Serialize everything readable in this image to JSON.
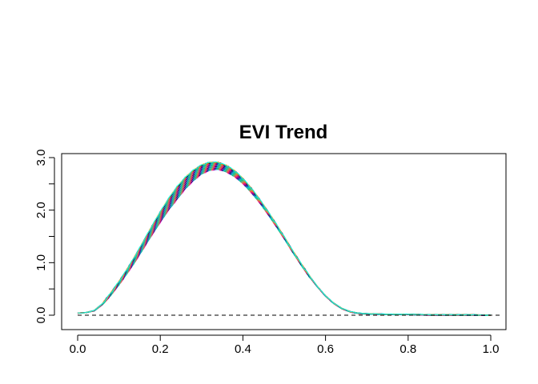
{
  "chart_data": {
    "type": "line",
    "title": "EVI Trend",
    "xlabel": "",
    "ylabel": "",
    "xlim": [
      0,
      1
    ],
    "ylim": [
      0,
      3
    ],
    "x_ticks": [
      "0.0",
      "0.2",
      "0.4",
      "0.6",
      "0.8",
      "1.0"
    ],
    "x_tick_values": [
      0.0,
      0.2,
      0.4,
      0.6,
      0.8,
      1.0
    ],
    "y_ticks": [
      "0.0",
      "1.0",
      "2.0",
      "3.0"
    ],
    "y_tick_values": [
      0.0,
      1.0,
      2.0,
      3.0
    ],
    "y_minor_tick_values": [
      0.5,
      1.5,
      2.5
    ],
    "grid": false,
    "reference_line": {
      "y": 0.0,
      "style": "dashed",
      "color": "#000000"
    },
    "band": {
      "description": "many overlapping multicolored curves",
      "x": [
        0.0,
        0.02,
        0.04,
        0.06,
        0.08,
        0.1,
        0.12,
        0.14,
        0.16,
        0.18,
        0.2,
        0.22,
        0.24,
        0.26,
        0.28,
        0.3,
        0.32,
        0.34,
        0.36,
        0.38,
        0.4,
        0.42,
        0.44,
        0.46,
        0.48,
        0.5,
        0.52,
        0.54,
        0.56,
        0.58,
        0.6,
        0.62,
        0.64,
        0.66,
        0.68,
        0.7,
        0.75,
        0.8,
        0.85,
        0.9,
        0.95,
        1.0
      ],
      "lower": [
        0.04,
        0.05,
        0.08,
        0.2,
        0.38,
        0.58,
        0.8,
        1.03,
        1.28,
        1.53,
        1.77,
        2.0,
        2.2,
        2.4,
        2.56,
        2.69,
        2.76,
        2.78,
        2.73,
        2.64,
        2.51,
        2.34,
        2.15,
        1.93,
        1.7,
        1.46,
        1.21,
        0.97,
        0.74,
        0.54,
        0.36,
        0.22,
        0.12,
        0.06,
        0.03,
        0.02,
        0.01,
        0.01,
        0.0,
        0.0,
        0.0,
        0.0
      ],
      "upper": [
        0.04,
        0.05,
        0.09,
        0.22,
        0.42,
        0.64,
        0.88,
        1.14,
        1.42,
        1.7,
        1.97,
        2.22,
        2.44,
        2.62,
        2.76,
        2.86,
        2.91,
        2.91,
        2.85,
        2.75,
        2.6,
        2.42,
        2.21,
        1.98,
        1.74,
        1.49,
        1.23,
        0.99,
        0.76,
        0.55,
        0.37,
        0.23,
        0.13,
        0.07,
        0.04,
        0.03,
        0.02,
        0.02,
        0.01,
        0.01,
        0.01,
        0.0
      ]
    },
    "series_colors": [
      "#ff00ff",
      "#00c8ff",
      "#3a3aff",
      "#ff3030",
      "#20b020",
      "#000000",
      "#ffa500",
      "#00ffff"
    ]
  }
}
